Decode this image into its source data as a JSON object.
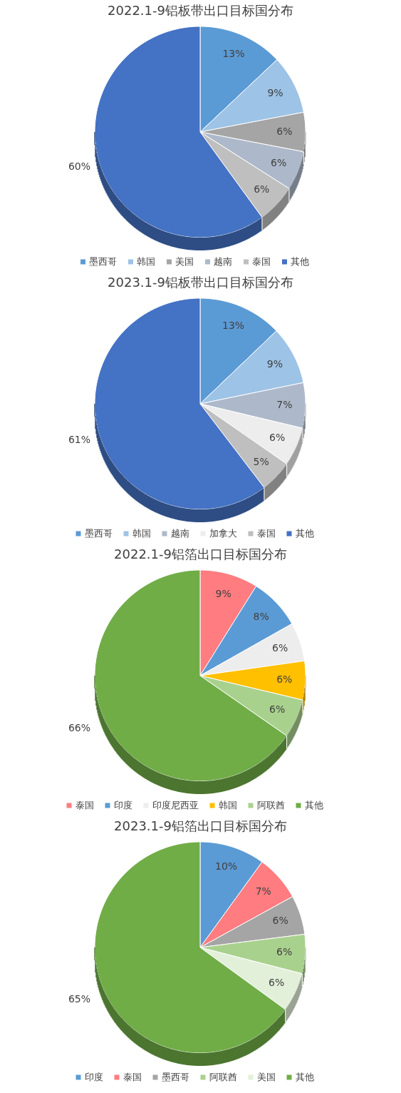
{
  "chart_data": [
    {
      "type": "pie",
      "title": "2022.1-9铝板带出口目标国分布",
      "categories": [
        "墨西哥",
        "韩国",
        "美国",
        "越南",
        "泰国",
        "其他"
      ],
      "values": [
        13,
        9,
        6,
        6,
        6,
        60
      ],
      "value_labels": [
        "13%",
        "9%",
        "6%",
        "6%",
        "6%",
        "60%"
      ],
      "colors": [
        "#5b9bd5",
        "#9dc3e6",
        "#a5a5a5",
        "#adb9ca",
        "#bfbfbf",
        "#4472c4"
      ],
      "data_labels": true,
      "legend": "bottom"
    },
    {
      "type": "pie",
      "title": "2023.1-9铝板带出口目标国分布",
      "categories": [
        "墨西哥",
        "韩国",
        "越南",
        "加拿大",
        "泰国",
        "其他"
      ],
      "values": [
        13,
        9,
        7,
        6,
        5,
        61
      ],
      "value_labels": [
        "13%",
        "9%",
        "7%",
        "6%",
        "5%",
        "61%"
      ],
      "colors": [
        "#5b9bd5",
        "#9dc3e6",
        "#adb9ca",
        "#ededed",
        "#bfbfbf",
        "#4472c4"
      ],
      "data_labels": true,
      "legend": "bottom"
    },
    {
      "type": "pie",
      "title": "2022.1-9铝箔出口目标国分布",
      "categories": [
        "泰国",
        "印度",
        "印度尼西亚",
        "韩国",
        "阿联酋",
        "其他"
      ],
      "values": [
        9,
        8,
        6,
        6,
        6,
        66
      ],
      "value_labels": [
        "9%",
        "8%",
        "6%",
        "6%",
        "6%",
        "66%"
      ],
      "colors": [
        "#ff7c80",
        "#5b9bd5",
        "#ededed",
        "#ffc000",
        "#a9d18e",
        "#70ad47"
      ],
      "data_labels": true,
      "legend": "bottom"
    },
    {
      "type": "pie",
      "title": "2023.1-9铝箔出口目标国分布",
      "categories": [
        "印度",
        "泰国",
        "墨西哥",
        "阿联酋",
        "美国",
        "其他"
      ],
      "values": [
        10,
        7,
        6,
        6,
        6,
        65
      ],
      "value_labels": [
        "10%",
        "7%",
        "6%",
        "6%",
        "6%",
        "65%"
      ],
      "colors": [
        "#5b9bd5",
        "#ff7c80",
        "#a5a5a5",
        "#a9d18e",
        "#e2f0d9",
        "#70ad47"
      ],
      "data_labels": true,
      "legend": "bottom"
    }
  ]
}
